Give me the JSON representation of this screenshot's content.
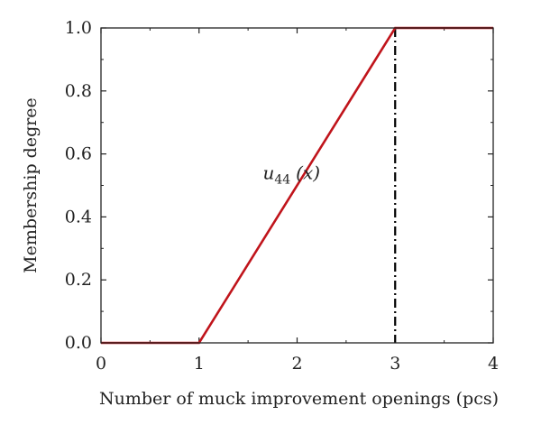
{
  "chart_data": {
    "type": "line",
    "xlabel": "Number of muck improvement openings (pcs)",
    "ylabel": "Membership degree",
    "xlim": [
      0,
      4
    ],
    "ylim": [
      0,
      1.0
    ],
    "x_ticks": [
      "0",
      "1",
      "2",
      "3",
      "4"
    ],
    "y_ticks": [
      "0.0",
      "0.2",
      "0.4",
      "0.6",
      "0.8",
      "1.0"
    ],
    "grid": false,
    "series": [
      {
        "color": "#c0141b",
        "x": [
          0,
          1,
          3,
          4
        ],
        "y": [
          0,
          0,
          1,
          1
        ]
      }
    ],
    "reference_line": {
      "x": 3,
      "style": "dash-dot",
      "color": "#000000"
    },
    "annotation": {
      "main": "u",
      "subscript": "44",
      "suffix": "(x)",
      "x": 1.65,
      "y": 0.52
    }
  }
}
